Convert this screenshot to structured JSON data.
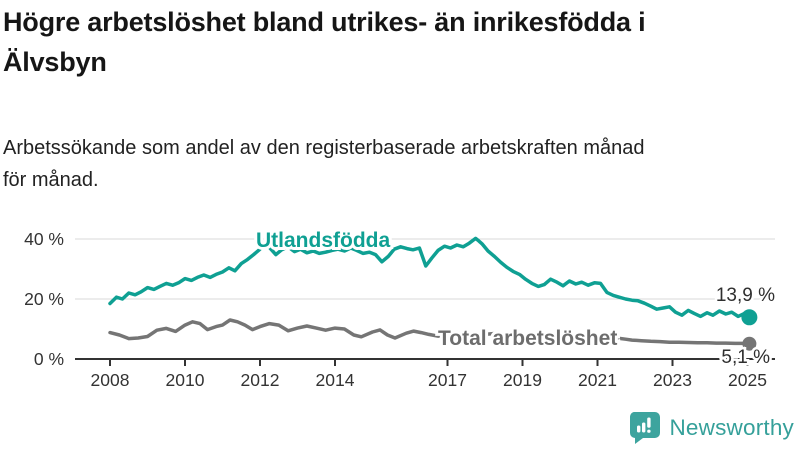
{
  "header": {
    "title_lines": [
      "Högre arbetslöshet bland utrikes- än inrikesfödda i",
      "Älvsbyn"
    ],
    "subtitle_lines": [
      "Arbetssökande som andel av den registerbaserade arbetskraften månad",
      "för månad."
    ]
  },
  "chart_data": {
    "type": "line",
    "title": "Högre arbetslöshet bland utrikes- än inrikesfödda i Älvsbyn",
    "subtitle": "Arbetssökande som andel av den registerbaserade arbetskraften månad för månad.",
    "unit": "%",
    "xlim": [
      2007.1,
      2025.8
    ],
    "ylim": [
      0,
      43
    ],
    "grid": "horizontal",
    "legend_position": "inline-labels",
    "x_ticks": [
      2008,
      2010,
      2012,
      2014,
      2017,
      2019,
      2021,
      2023,
      2025
    ],
    "x_tick_labels": [
      "2008",
      "2010",
      "2012",
      "2014",
      "2017",
      "2019",
      "2021",
      "2023",
      "2025"
    ],
    "y_ticks": [
      0,
      20,
      40
    ],
    "y_tick_labels": [
      "0 %",
      "20 %",
      "40 %"
    ],
    "series": [
      {
        "name": "Utlandsfödda",
        "color": "#0fa093",
        "end_label": "13,9 %",
        "end_value": 13.9,
        "points": [
          [
            2008.0,
            18.5
          ],
          [
            2008.17,
            20.6
          ],
          [
            2008.33,
            20.0
          ],
          [
            2008.5,
            22.0
          ],
          [
            2008.67,
            21.4
          ],
          [
            2008.83,
            22.4
          ],
          [
            2009.0,
            23.8
          ],
          [
            2009.17,
            23.2
          ],
          [
            2009.33,
            24.2
          ],
          [
            2009.5,
            25.2
          ],
          [
            2009.67,
            24.6
          ],
          [
            2009.83,
            25.4
          ],
          [
            2010.0,
            26.8
          ],
          [
            2010.17,
            26.2
          ],
          [
            2010.33,
            27.2
          ],
          [
            2010.5,
            28.0
          ],
          [
            2010.67,
            27.2
          ],
          [
            2010.83,
            28.2
          ],
          [
            2011.0,
            29.0
          ],
          [
            2011.17,
            30.4
          ],
          [
            2011.33,
            29.4
          ],
          [
            2011.5,
            31.8
          ],
          [
            2011.67,
            33.2
          ],
          [
            2011.83,
            34.8
          ],
          [
            2012.0,
            36.6
          ],
          [
            2012.08,
            38.4
          ],
          [
            2012.25,
            37.2
          ],
          [
            2012.42,
            34.8
          ],
          [
            2012.58,
            36.4
          ],
          [
            2012.75,
            37.4
          ],
          [
            2012.92,
            35.8
          ],
          [
            2013.08,
            36.6
          ],
          [
            2013.25,
            35.4
          ],
          [
            2013.42,
            36.0
          ],
          [
            2013.58,
            35.2
          ],
          [
            2013.75,
            35.6
          ],
          [
            2013.92,
            36.2
          ],
          [
            2014.08,
            36.6
          ],
          [
            2014.25,
            36.0
          ],
          [
            2014.42,
            37.0
          ],
          [
            2014.58,
            36.2
          ],
          [
            2014.75,
            35.2
          ],
          [
            2014.92,
            35.6
          ],
          [
            2015.08,
            34.8
          ],
          [
            2015.25,
            32.4
          ],
          [
            2015.42,
            34.2
          ],
          [
            2015.58,
            36.6
          ],
          [
            2015.75,
            37.4
          ],
          [
            2015.92,
            36.8
          ],
          [
            2016.08,
            36.4
          ],
          [
            2016.25,
            37.0
          ],
          [
            2016.42,
            31.0
          ],
          [
            2016.58,
            33.6
          ],
          [
            2016.75,
            36.2
          ],
          [
            2016.92,
            37.6
          ],
          [
            2017.08,
            37.0
          ],
          [
            2017.25,
            38.0
          ],
          [
            2017.42,
            37.4
          ],
          [
            2017.58,
            38.6
          ],
          [
            2017.75,
            40.2
          ],
          [
            2017.83,
            39.4
          ],
          [
            2017.92,
            38.4
          ],
          [
            2018.08,
            36.0
          ],
          [
            2018.25,
            34.2
          ],
          [
            2018.42,
            32.2
          ],
          [
            2018.58,
            30.6
          ],
          [
            2018.75,
            29.2
          ],
          [
            2018.92,
            28.2
          ],
          [
            2019.08,
            26.6
          ],
          [
            2019.25,
            25.2
          ],
          [
            2019.42,
            24.2
          ],
          [
            2019.58,
            24.8
          ],
          [
            2019.75,
            26.6
          ],
          [
            2019.92,
            25.6
          ],
          [
            2020.08,
            24.4
          ],
          [
            2020.25,
            26.0
          ],
          [
            2020.42,
            25.0
          ],
          [
            2020.58,
            25.6
          ],
          [
            2020.75,
            24.6
          ],
          [
            2020.92,
            25.4
          ],
          [
            2021.08,
            25.2
          ],
          [
            2021.25,
            22.2
          ],
          [
            2021.42,
            21.2
          ],
          [
            2021.58,
            20.6
          ],
          [
            2021.75,
            20.0
          ],
          [
            2021.92,
            19.6
          ],
          [
            2022.08,
            19.4
          ],
          [
            2022.25,
            18.6
          ],
          [
            2022.42,
            17.6
          ],
          [
            2022.58,
            16.6
          ],
          [
            2022.75,
            17.0
          ],
          [
            2022.92,
            17.4
          ],
          [
            2023.08,
            15.6
          ],
          [
            2023.25,
            14.6
          ],
          [
            2023.42,
            16.2
          ],
          [
            2023.58,
            15.2
          ],
          [
            2023.75,
            14.2
          ],
          [
            2023.92,
            15.4
          ],
          [
            2024.08,
            14.6
          ],
          [
            2024.25,
            16.0
          ],
          [
            2024.42,
            15.0
          ],
          [
            2024.58,
            15.6
          ],
          [
            2024.75,
            14.2
          ],
          [
            2024.92,
            15.2
          ],
          [
            2025.05,
            13.9
          ]
        ]
      },
      {
        "name": "Total arbetslöshet",
        "color": "#757575",
        "end_label": "5,1 %",
        "end_value": 5.1,
        "points": [
          [
            2008.0,
            8.8
          ],
          [
            2008.25,
            8.0
          ],
          [
            2008.5,
            6.8
          ],
          [
            2008.75,
            7.0
          ],
          [
            2009.0,
            7.5
          ],
          [
            2009.25,
            9.6
          ],
          [
            2009.5,
            10.2
          ],
          [
            2009.75,
            9.2
          ],
          [
            2010.0,
            11.3
          ],
          [
            2010.2,
            12.4
          ],
          [
            2010.4,
            11.8
          ],
          [
            2010.6,
            9.8
          ],
          [
            2010.83,
            10.8
          ],
          [
            2011.0,
            11.3
          ],
          [
            2011.2,
            13.0
          ],
          [
            2011.4,
            12.4
          ],
          [
            2011.6,
            11.3
          ],
          [
            2011.8,
            9.8
          ],
          [
            2012.0,
            10.8
          ],
          [
            2012.25,
            11.8
          ],
          [
            2012.5,
            11.3
          ],
          [
            2012.75,
            9.4
          ],
          [
            2013.0,
            10.3
          ],
          [
            2013.25,
            11.0
          ],
          [
            2013.5,
            10.3
          ],
          [
            2013.75,
            9.6
          ],
          [
            2014.0,
            10.3
          ],
          [
            2014.25,
            10.0
          ],
          [
            2014.5,
            8.0
          ],
          [
            2014.7,
            7.4
          ],
          [
            2015.0,
            9.0
          ],
          [
            2015.2,
            9.7
          ],
          [
            2015.4,
            8.0
          ],
          [
            2015.6,
            7.0
          ],
          [
            2015.9,
            8.6
          ],
          [
            2016.1,
            9.3
          ],
          [
            2016.3,
            8.8
          ],
          [
            2016.5,
            8.2
          ],
          [
            2016.75,
            7.6
          ],
          [
            2017.0,
            8.4
          ],
          [
            2017.25,
            8.8
          ],
          [
            2017.5,
            8.0
          ],
          [
            2017.75,
            7.6
          ],
          [
            2018.0,
            8.2
          ],
          [
            2018.25,
            8.5
          ],
          [
            2018.5,
            7.8
          ],
          [
            2018.75,
            7.4
          ],
          [
            2019.0,
            8.0
          ],
          [
            2019.25,
            8.2
          ],
          [
            2019.5,
            7.4
          ],
          [
            2019.75,
            7.2
          ],
          [
            2020.0,
            7.8
          ],
          [
            2020.25,
            8.0
          ],
          [
            2020.5,
            7.6
          ],
          [
            2020.75,
            7.2
          ],
          [
            2021.0,
            7.5
          ],
          [
            2021.25,
            7.4
          ],
          [
            2021.5,
            7.0
          ],
          [
            2021.75,
            6.6
          ],
          [
            2021.92,
            6.3
          ],
          [
            2022.17,
            6.1
          ],
          [
            2022.42,
            5.9
          ],
          [
            2022.67,
            5.8
          ],
          [
            2022.92,
            5.6
          ],
          [
            2023.17,
            5.6
          ],
          [
            2023.42,
            5.5
          ],
          [
            2023.67,
            5.4
          ],
          [
            2023.92,
            5.4
          ],
          [
            2024.17,
            5.3
          ],
          [
            2024.42,
            5.3
          ],
          [
            2024.67,
            5.2
          ],
          [
            2024.92,
            5.2
          ],
          [
            2025.05,
            5.1
          ]
        ]
      }
    ]
  },
  "footer": {
    "brand": "Newsworthy",
    "logo_icon": "bar-chart-speech-bubble-icon",
    "brand_color": "#35a09a",
    "icon_color": "#3da49e"
  }
}
